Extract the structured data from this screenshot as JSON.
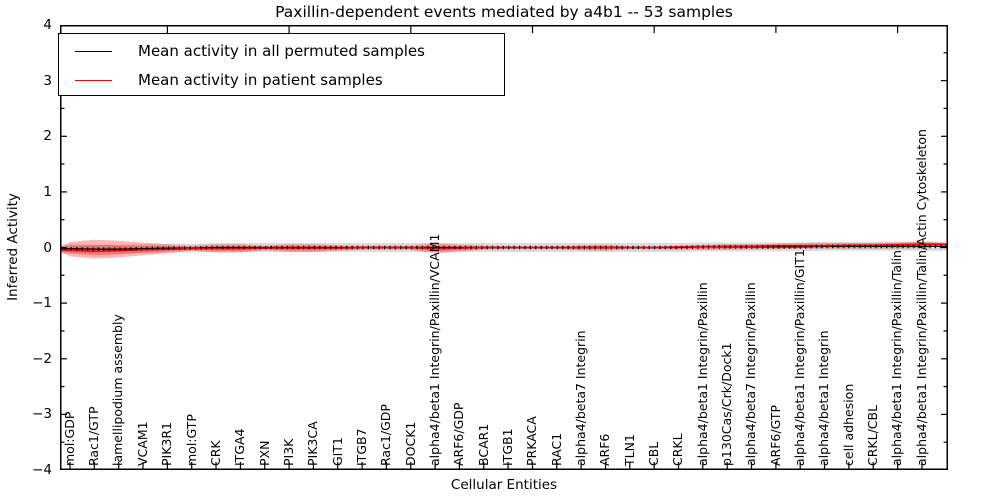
{
  "chart_data": {
    "type": "line",
    "title": "Paxillin-dependent events mediated by a4b1 -- 53 samples",
    "xlabel": "Cellular Entities",
    "ylabel": "Inferred Activity",
    "ylim": [
      -4,
      4
    ],
    "yticks": [
      -4,
      -3,
      -2,
      -1,
      0,
      1,
      2,
      3,
      4
    ],
    "grid": false,
    "legend_position": "upper left",
    "sample_count": "53",
    "categories": [
      "mol:GDP",
      "Rac1/GTP",
      "lamellipodium assembly",
      "VCAM1",
      "PIK3R1",
      "mol:GTP",
      "CRK",
      "ITGA4",
      "PXN",
      "PI3K",
      "PIK3CA",
      "GIT1",
      "ITGB7",
      "Rac1/GDP",
      "DOCK1",
      "alpha4/beta1 Integrin/Paxillin/VCAM1",
      "ARF6/GDP",
      "BCAR1",
      "ITGB1",
      "PRKACA",
      "RAC1",
      "alpha4/beta7 Integrin",
      "ARF6",
      "TLN1",
      "CBL",
      "CRKL",
      "alpha4/beta1 Integrin/Paxillin",
      "p130Cas/Crk/Dock1",
      "alpha4/beta7 Integrin/Paxillin",
      "ARF6/GTP",
      "alpha4/beta1 Integrin/Paxillin/GIT1",
      "alpha4/beta1 Integrin",
      "cell adhesion",
      "CRKL/CBL",
      "alpha4/beta1 Integrin/Paxillin/Talin",
      "alpha4/beta1 Integrin/Paxillin/Talin/Actin Cytoskeleton"
    ],
    "series": [
      {
        "name": "Mean activity in all permuted samples",
        "color": "#000000",
        "values": [
          -0.02,
          -0.03,
          -0.03,
          -0.02,
          -0.01,
          -0.01,
          0,
          0,
          0,
          0,
          0,
          0,
          0,
          0,
          0,
          0,
          0,
          0,
          0,
          0,
          0,
          0,
          0,
          0,
          0,
          0,
          0.01,
          0.01,
          0.01,
          0.01,
          0.01,
          0.02,
          0.02,
          0.02,
          0.02,
          0.02
        ]
      },
      {
        "name": "Mean activity in patient samples",
        "color": "#ff0000",
        "values": [
          -0.05,
          -0.07,
          -0.06,
          -0.04,
          -0.03,
          -0.02,
          -0.02,
          -0.02,
          -0.01,
          -0.01,
          -0.01,
          -0.01,
          0,
          0,
          0,
          -0.02,
          -0.01,
          0,
          0,
          0,
          0,
          0,
          0,
          0,
          0,
          0.01,
          0.01,
          0.02,
          0.02,
          0.03,
          0.03,
          0.03,
          0.04,
          0.04,
          0.05,
          0.06
        ]
      }
    ],
    "bands": [
      {
        "name": "permuted samples spread",
        "color": "#999999",
        "opacity": 0.35,
        "upper": [
          0.06,
          0.05,
          0.05,
          0.06,
          0.07,
          0.07,
          0.08,
          0.08,
          0.08,
          0.08,
          0.08,
          0.08,
          0.08,
          0.08,
          0.08,
          0.08,
          0.08,
          0.08,
          0.08,
          0.08,
          0.08,
          0.08,
          0.08,
          0.08,
          0.08,
          0.08,
          0.09,
          0.09,
          0.09,
          0.09,
          0.09,
          0.1,
          0.1,
          0.1,
          0.1,
          0.1
        ],
        "lower": [
          -0.1,
          -0.11,
          -0.11,
          -0.1,
          -0.09,
          -0.09,
          -0.08,
          -0.08,
          -0.08,
          -0.08,
          -0.08,
          -0.08,
          -0.08,
          -0.08,
          -0.08,
          -0.08,
          -0.08,
          -0.08,
          -0.08,
          -0.08,
          -0.08,
          -0.08,
          -0.08,
          -0.08,
          -0.08,
          -0.08,
          -0.07,
          -0.07,
          -0.07,
          -0.07,
          -0.07,
          -0.06,
          -0.06,
          -0.06,
          -0.06,
          -0.06
        ]
      },
      {
        "name": "patient samples spread",
        "color": "#ff0000",
        "opacity": 0.28,
        "upper": [
          0.1,
          0.14,
          0.12,
          0.09,
          0.06,
          0.03,
          0.06,
          0.06,
          0.03,
          0.06,
          0.06,
          0.04,
          0.03,
          0.03,
          0.03,
          0.08,
          0.05,
          0.03,
          0.02,
          0.02,
          0.02,
          0.04,
          0.05,
          0.02,
          0.02,
          0.03,
          0.05,
          0.06,
          0.06,
          0.07,
          0.08,
          0.08,
          0.08,
          0.08,
          0.09,
          0.11
        ],
        "lower": [
          -0.16,
          -0.2,
          -0.18,
          -0.14,
          -0.1,
          -0.06,
          -0.09,
          -0.09,
          -0.05,
          -0.08,
          -0.08,
          -0.06,
          -0.04,
          -0.04,
          -0.04,
          -0.11,
          -0.07,
          -0.04,
          -0.03,
          -0.03,
          -0.03,
          -0.05,
          -0.06,
          -0.03,
          -0.03,
          -0.04,
          -0.04,
          -0.04,
          -0.03,
          -0.03,
          -0.02,
          -0.02,
          -0.02,
          -0.02,
          -0.02,
          -0.01
        ]
      }
    ]
  }
}
